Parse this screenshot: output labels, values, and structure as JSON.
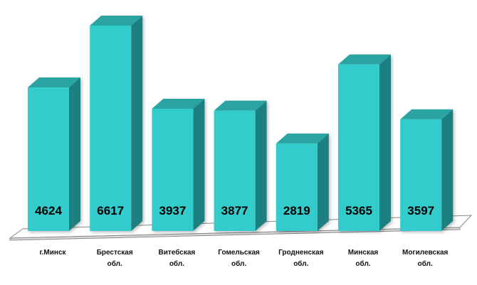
{
  "chart_data": {
    "type": "bar",
    "style": "3d",
    "categories": [
      [
        "г.Минск"
      ],
      [
        "Брестская",
        "обл."
      ],
      [
        "Витебская",
        "обл."
      ],
      [
        "Гомельская",
        "обл."
      ],
      [
        "Гродненская",
        "обл."
      ],
      [
        "Минская",
        "обл."
      ],
      [
        "Могилевская",
        "обл."
      ]
    ],
    "values": [
      4624,
      6617,
      3937,
      3877,
      2819,
      5365,
      3597
    ],
    "data_labels": [
      "4624",
      "6617",
      "3937",
      "3877",
      "2819",
      "5365",
      "3597"
    ],
    "title": "",
    "xlabel": "",
    "ylabel": "",
    "grid": false,
    "legend": "none",
    "colors": {
      "bar_front": "#33cccc",
      "bar_top": "#29a3a3",
      "bar_side": "#1f8080",
      "floor": "#ffffff",
      "floor_stroke": "#888888"
    }
  }
}
